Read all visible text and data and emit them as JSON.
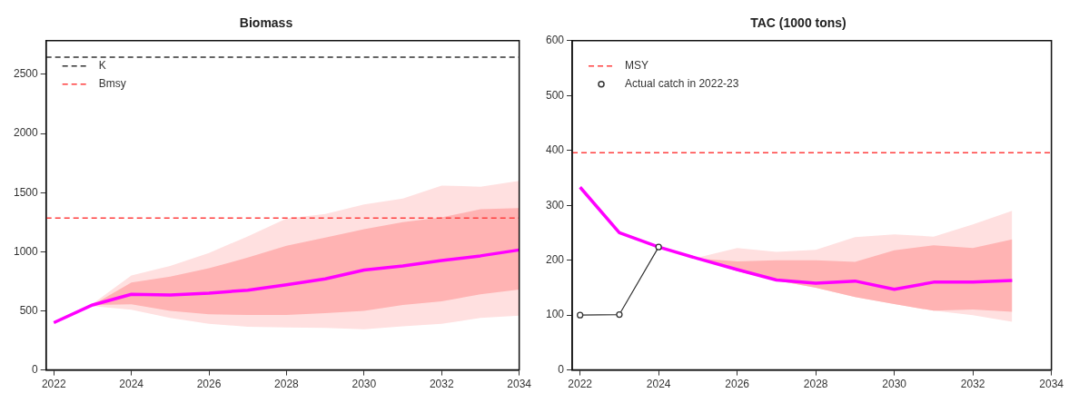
{
  "chart_data": [
    {
      "type": "line",
      "title": "Biomass",
      "x": [
        2022,
        2023,
        2024,
        2025,
        2026,
        2027,
        2028,
        2029,
        2030,
        2031,
        2032,
        2033,
        2034
      ],
      "xlim": [
        2021.8,
        2034
      ],
      "xticks": [
        2022,
        2024,
        2026,
        2028,
        2030,
        2032,
        2034
      ],
      "ylim": [
        0,
        2785
      ],
      "yticks": [
        0,
        500,
        1000,
        1500,
        2000,
        2500
      ],
      "grid": false,
      "legend": "top left",
      "series": [
        {
          "color": "#ffe0e0",
          "values": [
            null,
            null,
            null,
            null,
            null,
            null,
            null,
            null,
            null,
            null,
            null,
            null,
            null
          ],
          "lower": [
            null,
            540,
            510,
            440,
            390,
            365,
            360,
            355,
            345,
            370,
            390,
            440,
            460
          ],
          "upper": [
            null,
            560,
            800,
            880,
            990,
            1130,
            1280,
            1320,
            1400,
            1450,
            1560,
            1550,
            1600
          ]
        },
        {
          "color": "#ffb3b3",
          "values": [
            null,
            null,
            null,
            null,
            null,
            null,
            null,
            null,
            null,
            null,
            null,
            null,
            null
          ],
          "lower": [
            null,
            550,
            555,
            500,
            470,
            465,
            465,
            480,
            500,
            550,
            580,
            640,
            680
          ],
          "upper": [
            null,
            550,
            740,
            790,
            860,
            950,
            1050,
            1120,
            1190,
            1250,
            1290,
            1360,
            1370
          ]
        },
        {
          "color": "#ff00ff",
          "values": [
            400,
            550,
            640,
            635,
            650,
            675,
            720,
            770,
            845,
            880,
            925,
            965,
            1015
          ]
        }
      ],
      "ref_lines": [
        {
          "axis": "y",
          "value": 2646,
          "label": "K",
          "color": "#333333",
          "line_style": "dashed"
        },
        {
          "axis": "y",
          "value": 1285,
          "label": "Bmsy",
          "color": "#ff4040",
          "line_style": "dashed"
        }
      ]
    },
    {
      "type": "line",
      "title": "TAC (1000 tons)",
      "x": [
        2022,
        2023,
        2024,
        2025,
        2026,
        2027,
        2028,
        2029,
        2030,
        2031,
        2032,
        2033
      ],
      "xlim": [
        2021.8,
        2034
      ],
      "xticks": [
        2022,
        2024,
        2026,
        2028,
        2030,
        2032,
        2034
      ],
      "ylim": [
        0,
        600
      ],
      "yticks": [
        0,
        100,
        200,
        300,
        400,
        500,
        600
      ],
      "grid": false,
      "legend": "top left",
      "series": [
        {
          "color": "#ffe0e0",
          "values": [
            null,
            null,
            null,
            null,
            null,
            null,
            null,
            null,
            null,
            null,
            null,
            null
          ],
          "lower": [
            null,
            null,
            null,
            203,
            180,
            163,
            150,
            133,
            120,
            108,
            100,
            88
          ],
          "upper": [
            null,
            null,
            null,
            205,
            222,
            215,
            219,
            242,
            247,
            243,
            265,
            290
          ]
        },
        {
          "color": "#ffb3b3",
          "values": [
            null,
            null,
            null,
            null,
            null,
            null,
            null,
            null,
            null,
            null,
            null,
            null
          ],
          "lower": [
            null,
            null,
            null,
            203,
            180,
            163,
            150,
            133,
            120,
            108,
            110,
            106
          ],
          "upper": [
            null,
            null,
            null,
            203,
            198,
            200,
            200,
            197,
            218,
            227,
            222,
            238
          ]
        },
        {
          "color": "#ff00ff",
          "values": [
            333,
            250,
            224,
            203,
            183,
            164,
            158,
            162,
            147,
            160,
            160,
            163
          ]
        },
        {
          "name": "Actual catch in 2022-23",
          "color": "#333333",
          "marker": "circle",
          "values": [
            100,
            101,
            224,
            null,
            null,
            null,
            null,
            null,
            null,
            null,
            null,
            null
          ]
        }
      ],
      "ref_lines": [
        {
          "axis": "y",
          "value": 396,
          "label": "MSY",
          "color": "#ff4040",
          "line_style": "dashed"
        }
      ]
    }
  ]
}
